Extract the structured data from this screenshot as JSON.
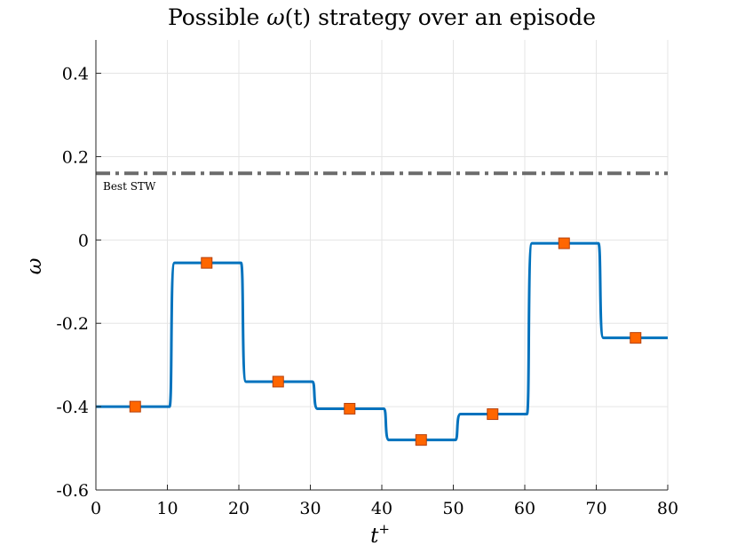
{
  "chart_data": {
    "type": "line",
    "title_prefix": "Possible ",
    "title_omega": "ω",
    "title_arg": "(t)",
    "title_suffix": " strategy over an episode",
    "xlabel_main": "t",
    "xlabel_sup": "+",
    "ylabel": "ω",
    "xlim": [
      0,
      80
    ],
    "ylim": [
      -0.6,
      0.48
    ],
    "xticks": [
      0,
      10,
      20,
      30,
      40,
      50,
      60,
      70,
      80
    ],
    "xtick_labels": [
      "0",
      "10",
      "20",
      "30",
      "40",
      "50",
      "60",
      "70",
      "80"
    ],
    "yticks": [
      -0.6,
      -0.4,
      -0.2,
      0,
      0.2,
      0.4
    ],
    "ytick_labels": [
      "-0.6",
      "-0.4",
      "-0.2",
      "0",
      "0.2",
      "0.4"
    ],
    "grid": true,
    "steps": [
      {
        "x_start": 0,
        "x_end": 10,
        "y": -0.4
      },
      {
        "x_start": 10,
        "x_end": 20,
        "y": -0.055
      },
      {
        "x_start": 20,
        "x_end": 30,
        "y": -0.34
      },
      {
        "x_start": 30,
        "x_end": 40,
        "y": -0.405
      },
      {
        "x_start": 40,
        "x_end": 50,
        "y": -0.48
      },
      {
        "x_start": 50,
        "x_end": 60,
        "y": -0.418
      },
      {
        "x_start": 60,
        "x_end": 70,
        "y": -0.008
      },
      {
        "x_start": 70,
        "x_end": 80,
        "y": -0.235
      }
    ],
    "markers": {
      "x": [
        5.5,
        15.5,
        25.5,
        35.5,
        45.5,
        55.5,
        65.5,
        75.5
      ],
      "y": [
        -0.4,
        -0.055,
        -0.34,
        -0.405,
        -0.48,
        -0.418,
        -0.008,
        -0.235
      ]
    },
    "reference_line": {
      "y": 0.16,
      "label": "Best STW"
    },
    "colors": {
      "line": "#0072BD",
      "marker_fill": "#FF6600",
      "marker_edge": "#B5400A",
      "reference": "#6b6b6b",
      "grid": "#e5e5e5",
      "axis": "#262626"
    }
  }
}
